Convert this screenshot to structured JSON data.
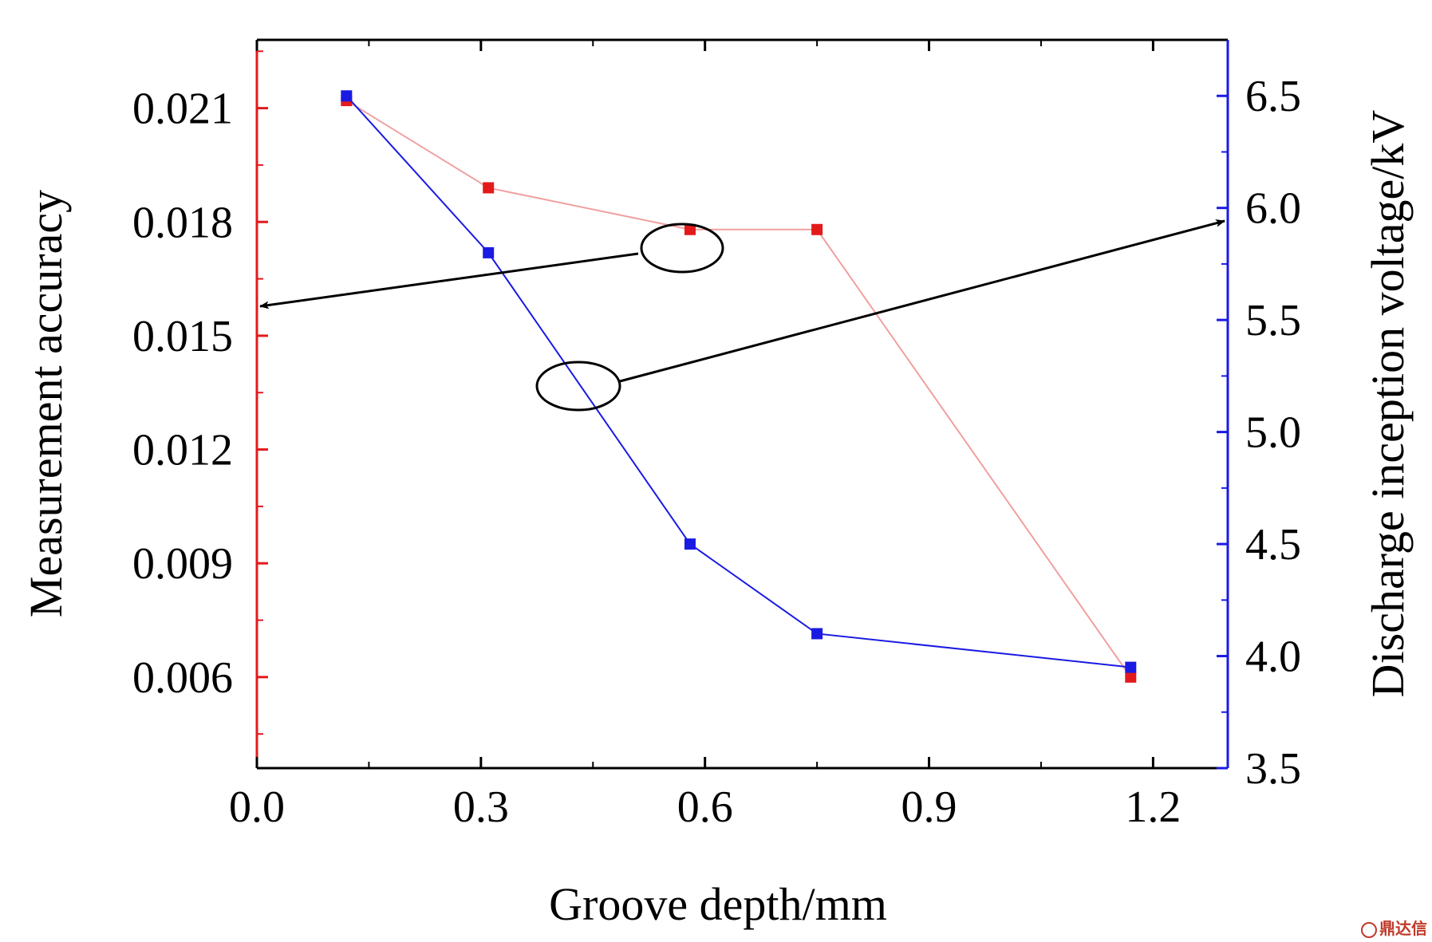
{
  "chart_data": {
    "type": "line",
    "xlabel": "Groove depth/mm",
    "ylabel_left": "Measurement accuracy",
    "ylabel_right": "Discharge inception voltage/kV",
    "xlim": [
      0.0,
      1.3
    ],
    "ylim_left": [
      0.0036,
      0.0228
    ],
    "ylim_right": [
      3.5,
      6.75
    ],
    "x_ticks": [
      "0.0",
      "0.3",
      "0.6",
      "0.9",
      "1.2"
    ],
    "y_left_ticks": [
      "0.006",
      "0.009",
      "0.012",
      "0.015",
      "0.018",
      "0.021"
    ],
    "y_right_ticks": [
      "3.5",
      "4.0",
      "4.5",
      "5.0",
      "5.5",
      "6.0",
      "6.5"
    ],
    "series": [
      {
        "axis": "left",
        "color": "#e31a1c",
        "x": [
          0.12,
          0.31,
          0.58,
          0.75,
          1.17
        ],
        "values": [
          0.0212,
          0.0189,
          0.0178,
          0.0178,
          0.006
        ]
      },
      {
        "axis": "right",
        "color": "#1a1ae3",
        "x": [
          0.12,
          0.31,
          0.58,
          0.75,
          1.17
        ],
        "values": [
          6.5,
          5.8,
          4.5,
          4.1,
          3.95
        ]
      }
    ],
    "annotations": [
      {
        "type": "ellipse-arrow",
        "target_axis": "left"
      },
      {
        "type": "ellipse-arrow",
        "target_axis": "right"
      }
    ],
    "left_axis_color": "#e31a1c",
    "right_axis_color": "#1a1ae3",
    "grid": false,
    "legend": "none"
  },
  "watermark": "鼎达信"
}
